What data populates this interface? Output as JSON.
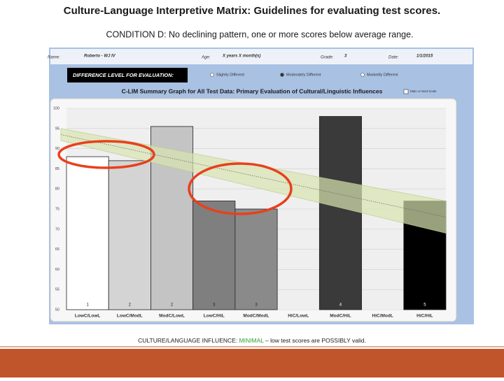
{
  "slide": {
    "title": "Culture-Language Interpretive Matrix: Guidelines for evaluating test scores.",
    "condition": "CONDITION D: No declining pattern, one or more scores below average range.",
    "footer_lead": "CULTURE/LANGUAGE INFLUENCE:",
    "footer_level": "MINIMAL",
    "footer_tail": "– low test scores are POSSIBLY valid."
  },
  "form": {
    "name_label": "Name:",
    "name": "Roberto - WJ IV",
    "age_label": "Age:",
    "age": "X years X month(s)",
    "grade_label": "Grade:",
    "grade": "3",
    "date_label": "Date:",
    "date": "1/1/2015",
    "difference_label": "DIFFERENCE LEVEL FOR EVALUATION:",
    "options": [
      "Slightly Different",
      "Moderately Different",
      "Markedly Different"
    ],
    "scale_option": "Main or Mod Scale"
  },
  "chart_data": {
    "type": "bar",
    "title": "C-LIM Summary Graph for All Test Data: Primary Evaluation of Cultural/Linguistic Influences",
    "categories": [
      "LowC/LowL",
      "LowC/ModL",
      "ModC/LowL",
      "LowC/HiL",
      "ModC/ModL",
      "HiC/LowL",
      "ModC/HiL",
      "HiC/ModL",
      "HiC/HiL"
    ],
    "bar_numbers": [
      1,
      2,
      2,
      3,
      3,
      null,
      4,
      null,
      5
    ],
    "values": [
      88,
      87,
      95.5,
      77,
      75,
      null,
      98,
      null,
      77
    ],
    "colors": [
      "#ffffff",
      "#d4d4d4",
      "#c4c4c4",
      "#7f7f7f",
      "#8a8a8a",
      null,
      "#3a3a3a",
      null,
      "#000000"
    ],
    "expected_band": {
      "upper": [
        95,
        77
      ],
      "lower": [
        92,
        69
      ],
      "trend": [
        93.5,
        73
      ],
      "color": "#d8e4b0"
    },
    "ylim": [
      50,
      100
    ],
    "yticks": [
      50,
      55,
      60,
      65,
      70,
      75,
      80,
      85,
      90,
      95,
      100
    ],
    "grid": true
  }
}
